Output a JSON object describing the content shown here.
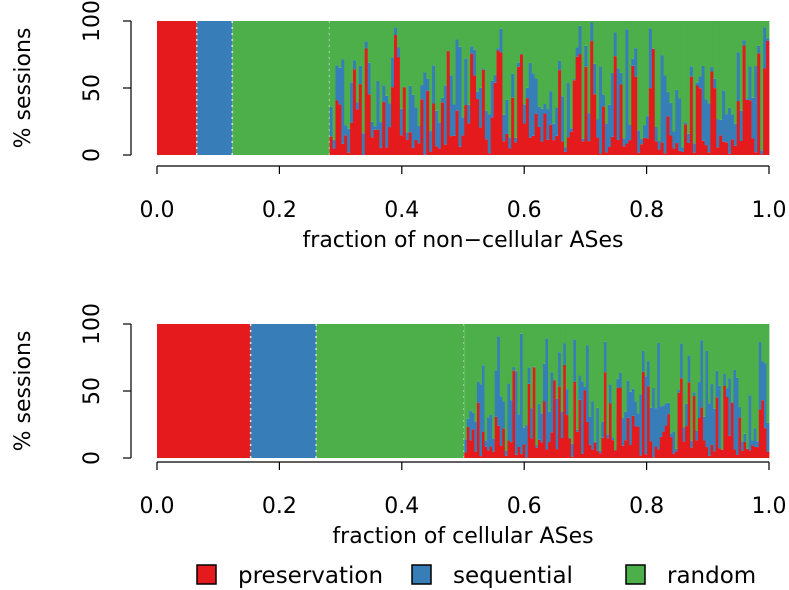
{
  "colors": {
    "preservation": "#e41a1c",
    "sequential": "#377eb8",
    "random": "#4daf4a",
    "separator": "#d9d9d9"
  },
  "legend": {
    "items": [
      {
        "key": "preservation",
        "label": "preservation"
      },
      {
        "key": "sequential",
        "label": "sequential"
      },
      {
        "key": "random",
        "label": "random"
      }
    ]
  },
  "chart_data": [
    {
      "type": "bar",
      "stacked": true,
      "xlabel": "fraction of non−cellular ASes",
      "ylabel": "% sessions",
      "xlim": [
        0,
        1
      ],
      "ylim": [
        0,
        100
      ],
      "xticks": [
        "0.0",
        "0.2",
        "0.4",
        "0.6",
        "0.8",
        "1.0"
      ],
      "yticks": [
        "0",
        "50",
        "100"
      ],
      "pure_segments": [
        {
          "category": "preservation",
          "x_start": 0.0,
          "x_end": 0.065
        },
        {
          "category": "sequential",
          "x_start": 0.065,
          "x_end": 0.123
        },
        {
          "category": "random",
          "x_start": 0.123,
          "x_end": 0.282
        }
      ],
      "mixed_region": {
        "x_start": 0.282,
        "x_end": 1.0,
        "bar_count": 150,
        "seed": 7
      }
    },
    {
      "type": "bar",
      "stacked": true,
      "xlabel": "fraction of cellular ASes",
      "ylabel": "% sessions",
      "xlim": [
        0,
        1
      ],
      "ylim": [
        0,
        100
      ],
      "xticks": [
        "0.0",
        "0.2",
        "0.4",
        "0.6",
        "0.8",
        "1.0"
      ],
      "yticks": [
        "0",
        "50",
        "100"
      ],
      "pure_segments": [
        {
          "category": "preservation",
          "x_start": 0.0,
          "x_end": 0.153
        },
        {
          "category": "sequential",
          "x_start": 0.153,
          "x_end": 0.26
        },
        {
          "category": "random",
          "x_start": 0.26,
          "x_end": 0.502
        }
      ],
      "mixed_region": {
        "x_start": 0.502,
        "x_end": 1.0,
        "bar_count": 120,
        "seed": 13
      }
    }
  ]
}
